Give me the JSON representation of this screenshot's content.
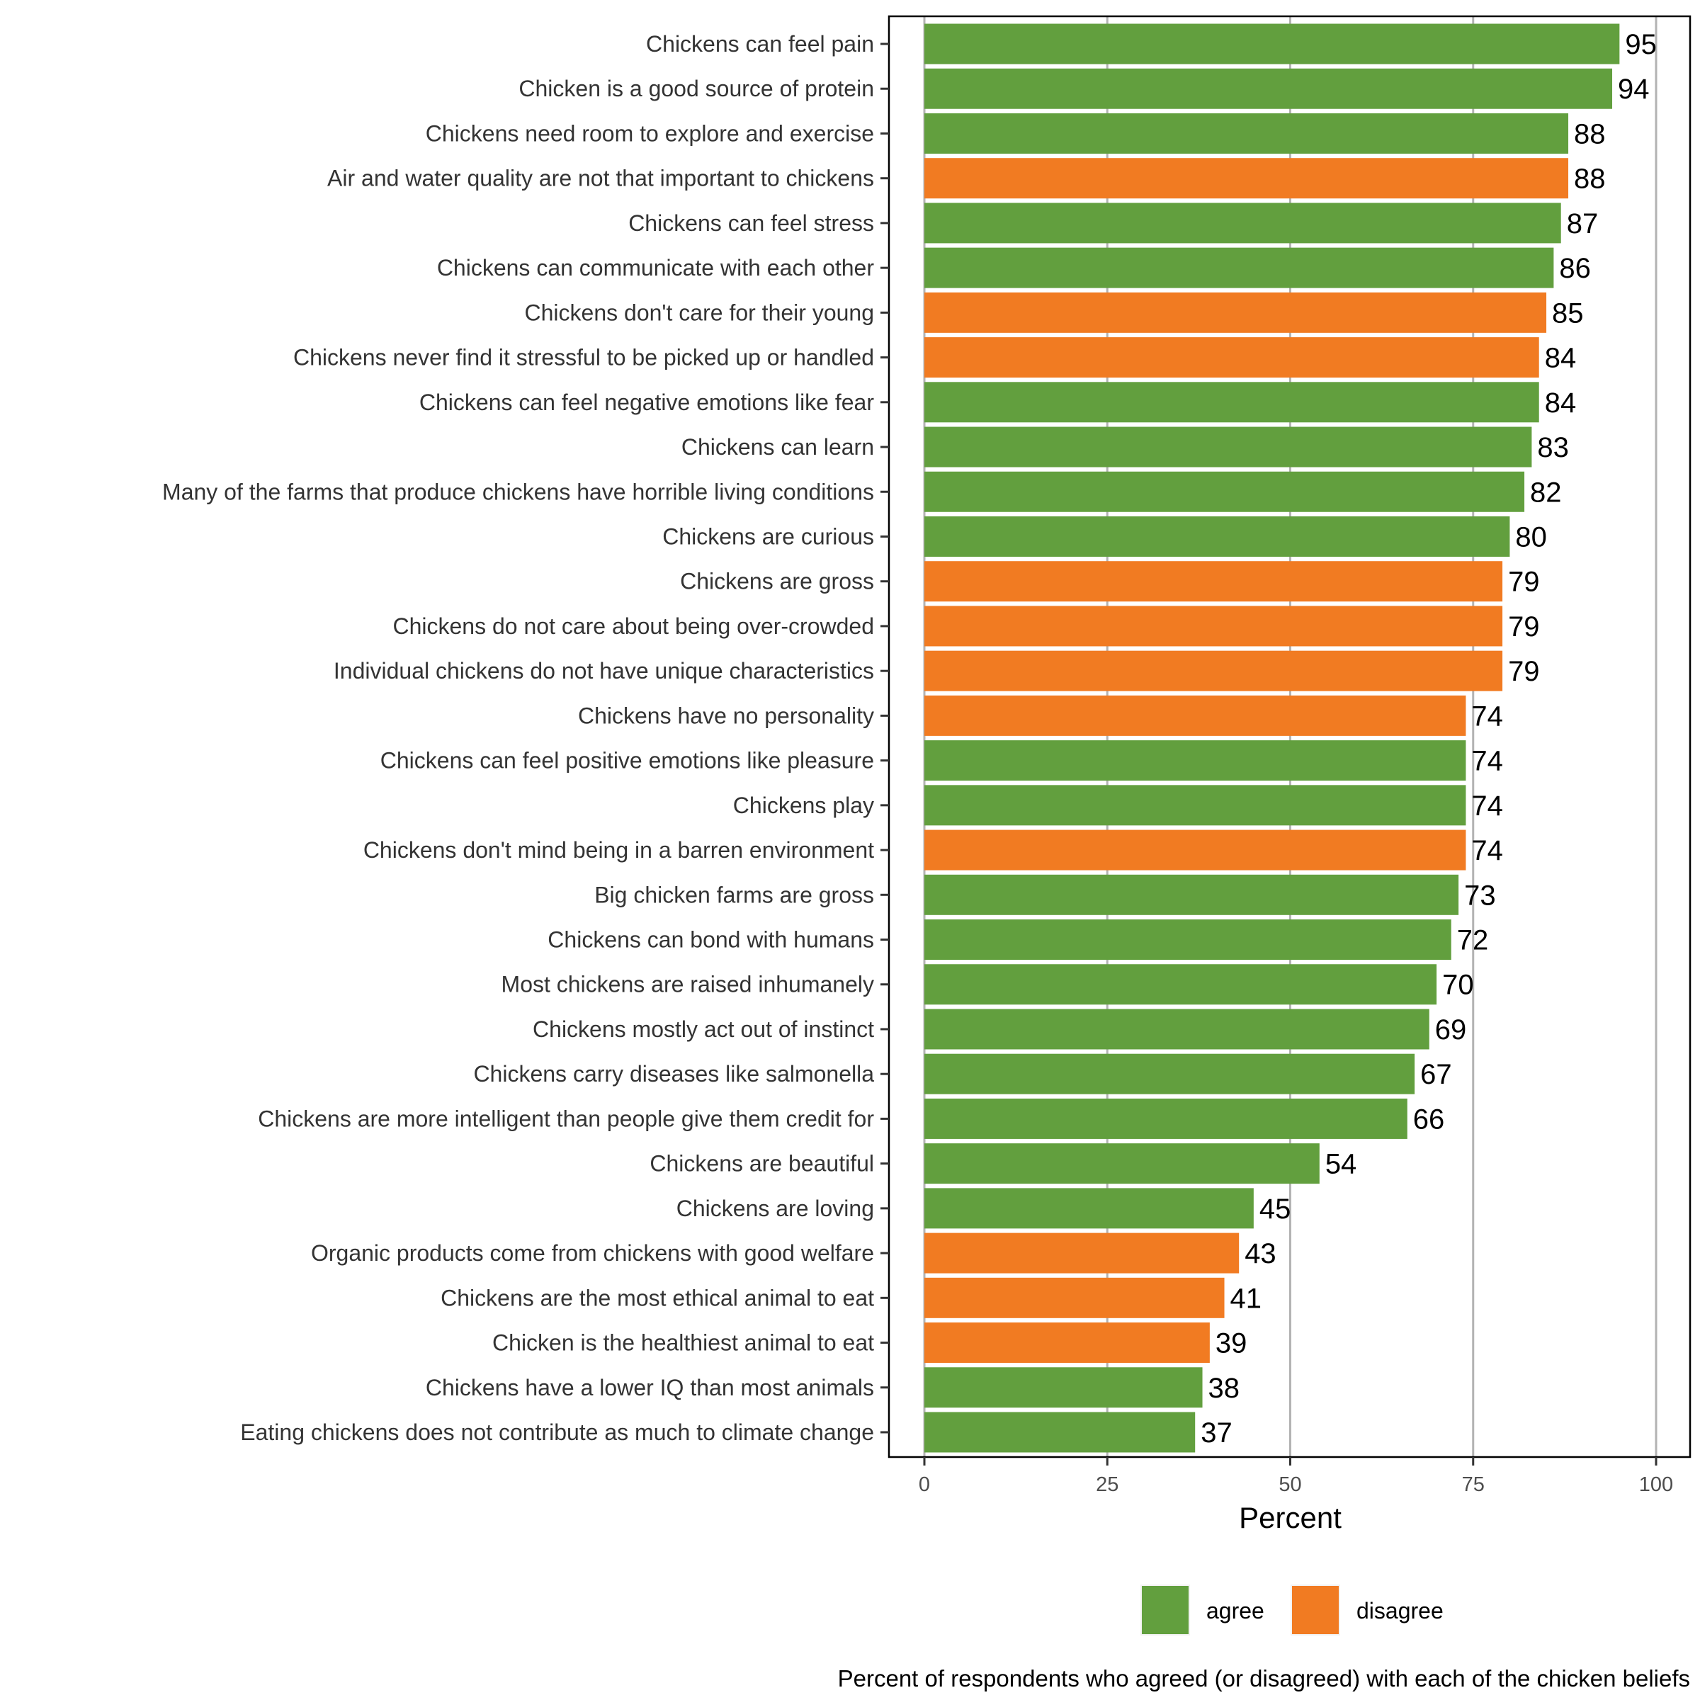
{
  "chart_data": {
    "type": "bar",
    "orientation": "horizontal",
    "title": "",
    "caption": "Percent of respondents who agreed (or disagreed) with each of the chicken beliefs",
    "xlabel": "Percent",
    "ylabel": "",
    "xlim": [
      0,
      100
    ],
    "xticks": [
      0,
      25,
      50,
      75,
      100
    ],
    "grid": "vertical major",
    "legend_position": "bottom",
    "legend": [
      {
        "key": "agree",
        "label": "agree",
        "color": "#629F3E"
      },
      {
        "key": "disagree",
        "label": "disagree",
        "color": "#F17B22"
      }
    ],
    "bars": [
      {
        "label": "Chickens can feel pain",
        "value": 95,
        "group": "agree"
      },
      {
        "label": "Chicken is a good source of protein",
        "value": 94,
        "group": "agree"
      },
      {
        "label": "Chickens need room to explore and exercise",
        "value": 88,
        "group": "agree"
      },
      {
        "label": "Air and water quality are not that important to chickens",
        "value": 88,
        "group": "disagree"
      },
      {
        "label": "Chickens can feel stress",
        "value": 87,
        "group": "agree"
      },
      {
        "label": "Chickens can communicate with each other",
        "value": 86,
        "group": "agree"
      },
      {
        "label": "Chickens don't care for their young",
        "value": 85,
        "group": "disagree"
      },
      {
        "label": "Chickens never find it stressful to be picked up or handled",
        "value": 84,
        "group": "disagree"
      },
      {
        "label": "Chickens can feel negative emotions like fear",
        "value": 84,
        "group": "agree"
      },
      {
        "label": "Chickens can learn",
        "value": 83,
        "group": "agree"
      },
      {
        "label": "Many of the farms that produce chickens have horrible living conditions",
        "value": 82,
        "group": "agree"
      },
      {
        "label": "Chickens are curious",
        "value": 80,
        "group": "agree"
      },
      {
        "label": "Chickens are gross",
        "value": 79,
        "group": "disagree"
      },
      {
        "label": "Chickens do not care about being over-crowded",
        "value": 79,
        "group": "disagree"
      },
      {
        "label": "Individual chickens do not have unique characteristics",
        "value": 79,
        "group": "disagree"
      },
      {
        "label": "Chickens have no personality",
        "value": 74,
        "group": "disagree"
      },
      {
        "label": "Chickens can feel positive emotions like pleasure",
        "value": 74,
        "group": "agree"
      },
      {
        "label": "Chickens play",
        "value": 74,
        "group": "agree"
      },
      {
        "label": "Chickens don't mind being in a barren environment",
        "value": 74,
        "group": "disagree"
      },
      {
        "label": "Big chicken farms are gross",
        "value": 73,
        "group": "agree"
      },
      {
        "label": "Chickens can bond with humans",
        "value": 72,
        "group": "agree"
      },
      {
        "label": "Most chickens are raised inhumanely",
        "value": 70,
        "group": "agree"
      },
      {
        "label": "Chickens mostly act out of instinct",
        "value": 69,
        "group": "agree"
      },
      {
        "label": "Chickens carry diseases like salmonella",
        "value": 67,
        "group": "agree"
      },
      {
        "label": "Chickens are more intelligent than people give them credit for",
        "value": 66,
        "group": "agree"
      },
      {
        "label": "Chickens are beautiful",
        "value": 54,
        "group": "agree"
      },
      {
        "label": "Chickens are loving",
        "value": 45,
        "group": "agree"
      },
      {
        "label": "Organic products come from chickens with good welfare",
        "value": 43,
        "group": "disagree"
      },
      {
        "label": "Chickens are the most ethical animal to eat",
        "value": 41,
        "group": "disagree"
      },
      {
        "label": "Chicken is the healthiest animal to eat",
        "value": 39,
        "group": "disagree"
      },
      {
        "label": "Chickens have a lower IQ than most animals",
        "value": 38,
        "group": "agree"
      },
      {
        "label": "Eating chickens does not contribute as much to climate change",
        "value": 37,
        "group": "agree"
      }
    ]
  }
}
